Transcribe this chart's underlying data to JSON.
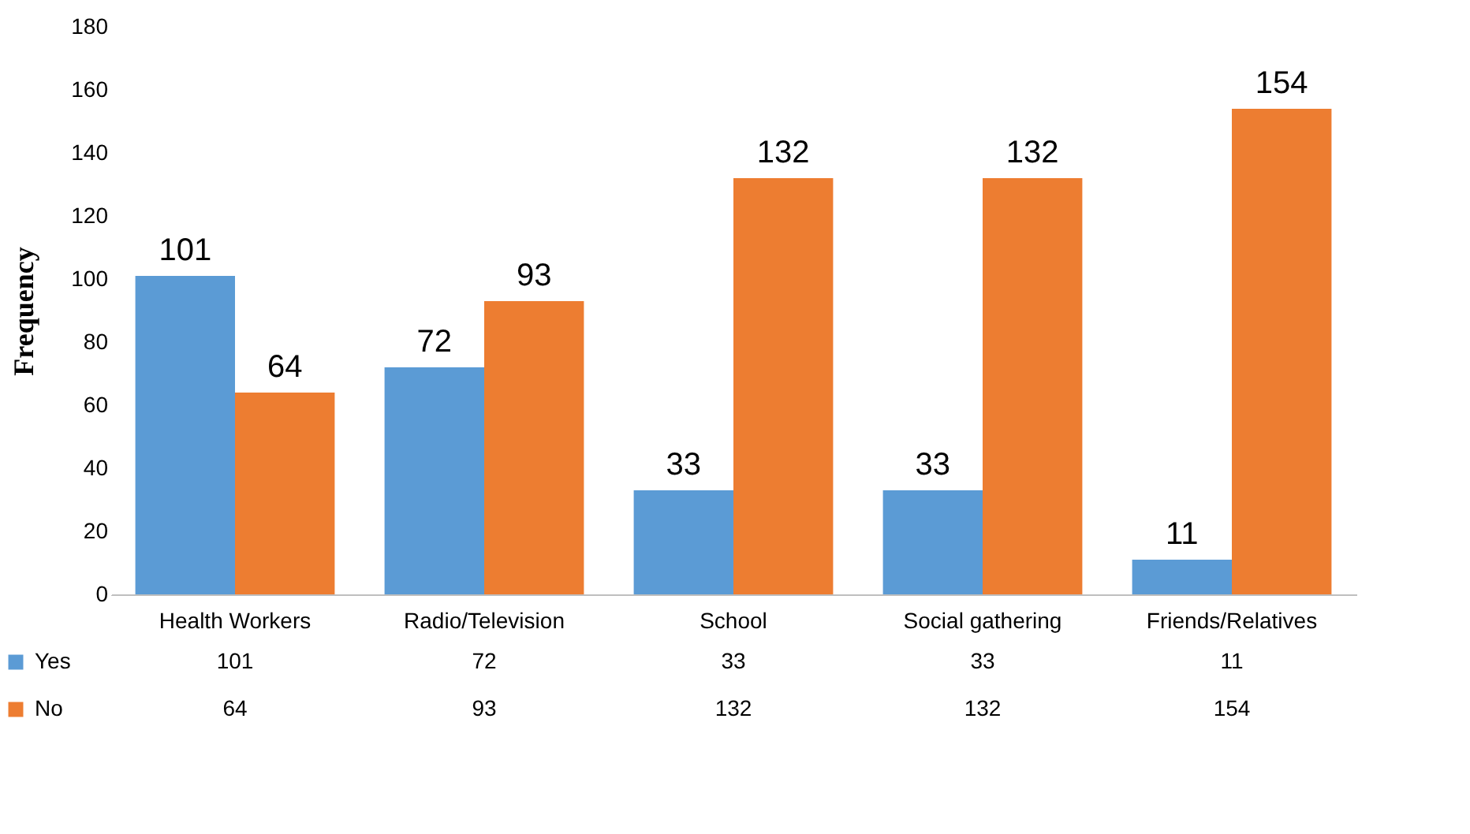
{
  "chart_data": {
    "type": "bar",
    "ylabel": "Frequency",
    "categories": [
      "Health Workers",
      "Radio/Television",
      "School",
      "Social gathering",
      "Friends/Relatives"
    ],
    "series": [
      {
        "name": "Yes",
        "color": "#5b9bd5",
        "values": [
          101,
          72,
          33,
          33,
          11
        ]
      },
      {
        "name": "No",
        "color": "#ed7d31",
        "values": [
          64,
          93,
          132,
          132,
          154
        ]
      }
    ],
    "ylim": [
      0,
      180
    ],
    "yticks": [
      0,
      20,
      40,
      60,
      80,
      100,
      120,
      140,
      160,
      180
    ],
    "grid": false,
    "legend": "bottom",
    "data_labels": true,
    "annotations": [
      {
        "text": "101",
        "x": "Health Workers",
        "y": 101
      },
      {
        "text": "72",
        "x": "Radio/Television",
        "y": 72
      },
      {
        "text": "33",
        "x": "School",
        "y": 33
      },
      {
        "text": "33",
        "x": "Social gathering",
        "y": 33
      },
      {
        "text": "11",
        "x": "Friends/Relatives",
        "y": 11
      },
      {
        "text": "64",
        "x": "Health Workers",
        "y": 64
      },
      {
        "text": "93",
        "x": "Radio/Television",
        "y": 93
      },
      {
        "text": "132",
        "x": "School",
        "y": 132
      },
      {
        "text": "132",
        "x": "Social gathering",
        "y": 132
      },
      {
        "text": "154",
        "x": "Friends/Relatives",
        "y": 154
      }
    ]
  }
}
